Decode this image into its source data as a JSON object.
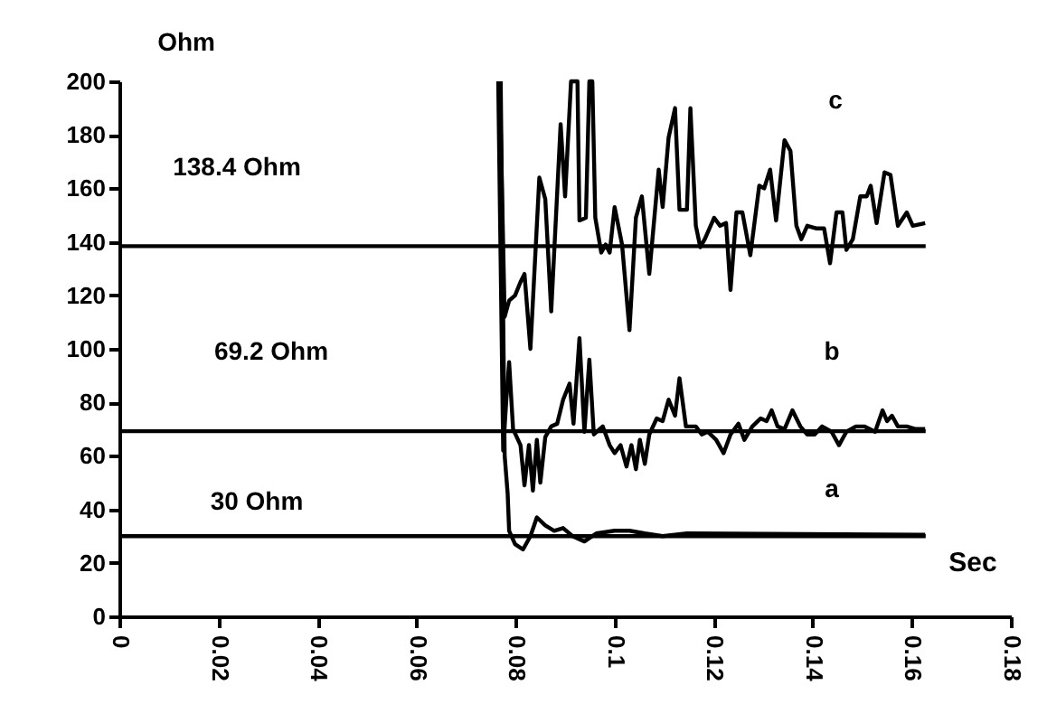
{
  "chart_data": {
    "type": "line",
    "xlabel": "Sec",
    "ylabel": "Ohm",
    "xlim": [
      0,
      0.18
    ],
    "xticks": [
      0,
      0.02,
      0.04,
      0.06,
      0.08,
      0.1,
      0.12,
      0.14,
      0.16,
      0.18
    ],
    "ylim": [
      0,
      200
    ],
    "yticks": [
      0,
      20,
      40,
      60,
      80,
      100,
      120,
      140,
      160,
      180,
      200
    ],
    "grid": false,
    "marker": "none",
    "line_style": "solid",
    "series": [
      {
        "color": "#000000",
        "x": [
          0,
          0.1628
        ],
        "values": [
          138.4,
          138.4
        ]
      },
      {
        "color": "#000000",
        "x": [
          0,
          0.1628
        ],
        "values": [
          69.2,
          69.2
        ]
      },
      {
        "color": "#000000",
        "x": [
          0,
          0.1628
        ],
        "values": [
          30,
          30
        ]
      },
      {
        "color": "#000000",
        "x": [
          0.0768,
          0.0778,
          0.0787,
          0.0799,
          0.081,
          0.0818,
          0.083,
          0.0848,
          0.086,
          0.0872,
          0.0891,
          0.09,
          0.0912,
          0.0925,
          0.0929,
          0.0942,
          0.0949,
          0.0955,
          0.0961,
          0.0973,
          0.0982,
          0.099,
          0.1,
          0.1015,
          0.103,
          0.1043,
          0.1055,
          0.107,
          0.1089,
          0.1097,
          0.1109,
          0.1122,
          0.1131,
          0.1146,
          0.1153,
          0.1164,
          0.1173,
          0.1182,
          0.1201,
          0.1213,
          0.1225,
          0.1234,
          0.1246,
          0.1258,
          0.1274,
          0.1292,
          0.1302,
          0.1314,
          0.1326,
          0.1343,
          0.1355,
          0.1367,
          0.1377,
          0.1389,
          0.1408,
          0.1423,
          0.1435,
          0.1448,
          0.146,
          0.1468,
          0.1481,
          0.1496,
          0.1509,
          0.1517,
          0.1529,
          0.1545,
          0.1557,
          0.1572,
          0.159,
          0.1602,
          0.1627
        ],
        "values": [
          200,
          112,
          118,
          120,
          125,
          128,
          100,
          164,
          156,
          114,
          184,
          157,
          200,
          200,
          148,
          149,
          200,
          200,
          149,
          136,
          139,
          136,
          153,
          139,
          107,
          149,
          157,
          128,
          167,
          153,
          179,
          190,
          152,
          152,
          190,
          146,
          138,
          141,
          149,
          146,
          147,
          122,
          151,
          151,
          135,
          161,
          160,
          167,
          148,
          178,
          174,
          146,
          141,
          146,
          145,
          145,
          132,
          151,
          151,
          137,
          141,
          157,
          157,
          161,
          147,
          166,
          165,
          146,
          151,
          146,
          147
        ]
      },
      {
        "color": "#000000",
        "x": [
          0.0765,
          0.0775,
          0.0781,
          0.0787,
          0.0795,
          0.081,
          0.0818,
          0.0827,
          0.0835,
          0.0843,
          0.085,
          0.086,
          0.0872,
          0.0884,
          0.0896,
          0.0909,
          0.0917,
          0.0929,
          0.0939,
          0.0949,
          0.0958,
          0.0976,
          0.099,
          0.1,
          0.1012,
          0.1024,
          0.1034,
          0.1043,
          0.1051,
          0.1061,
          0.107,
          0.1085,
          0.1097,
          0.1109,
          0.1122,
          0.1131,
          0.1144,
          0.1164,
          0.1176,
          0.1188,
          0.1205,
          0.122,
          0.1234,
          0.125,
          0.1262,
          0.1278,
          0.1295,
          0.1307,
          0.1317,
          0.1329,
          0.1343,
          0.1359,
          0.1375,
          0.1389,
          0.1404,
          0.1419,
          0.1438,
          0.1453,
          0.1468,
          0.1487,
          0.1504,
          0.1526,
          0.1541,
          0.155,
          0.156,
          0.1572,
          0.159,
          0.1608,
          0.1627
        ],
        "values": [
          200,
          62,
          80,
          95,
          70,
          64,
          49,
          64,
          47,
          66,
          50,
          67,
          71,
          72,
          81,
          87,
          72,
          104,
          69,
          96,
          68,
          71,
          64,
          61,
          64,
          56,
          64,
          55,
          66,
          57,
          68,
          74,
          73,
          81,
          75,
          89,
          71,
          71,
          68,
          69,
          66,
          61,
          68,
          72,
          66,
          71,
          74,
          73,
          77,
          71,
          70,
          77,
          71,
          68,
          68,
          71,
          69,
          64,
          69,
          71,
          71,
          69,
          77,
          73,
          75,
          71,
          71,
          70,
          70
        ]
      },
      {
        "color": "#000000",
        "x": [
          0.077,
          0.0778,
          0.0784,
          0.0787,
          0.0799,
          0.0815,
          0.083,
          0.0843,
          0.086,
          0.0878,
          0.0896,
          0.0915,
          0.0939,
          0.0963,
          0.1,
          0.103,
          0.1061,
          0.1097,
          0.1146,
          0.1627
        ],
        "values": [
          200,
          60,
          46,
          32,
          27,
          25,
          30,
          37,
          34,
          32,
          33,
          30,
          28,
          31,
          32,
          32,
          31,
          30,
          31,
          30.5
        ]
      }
    ],
    "annotations": [
      "138.4 Ohm",
      "69.2 Ohm",
      "30 Ohm",
      "c",
      "b",
      "a"
    ]
  }
}
